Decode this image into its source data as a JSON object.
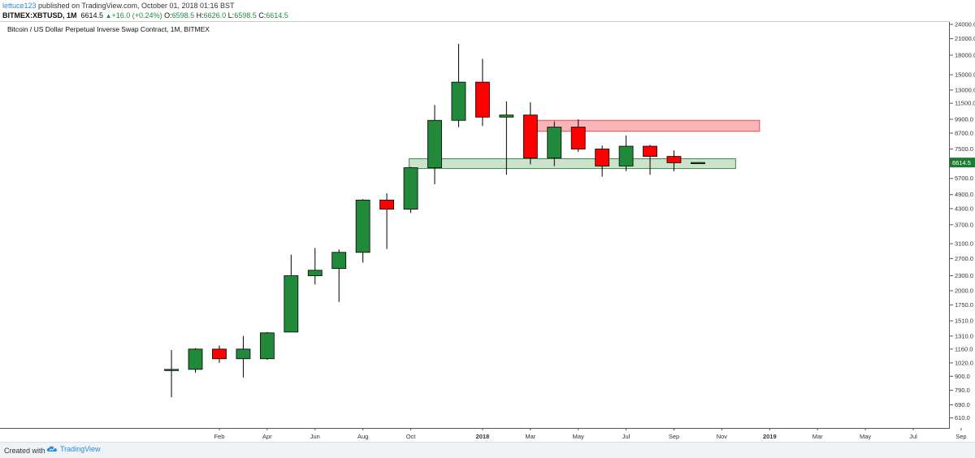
{
  "header": {
    "author": "lettuce123",
    "published_text": " published on TradingView.com, October 01, 2018 01:16 BST",
    "symbol": "BITMEX:XBTUSD, 1M",
    "last": "6614.5",
    "change": "+16.0 (+0.24%)",
    "open_label": "O:",
    "open": "6598.5",
    "high_label": "H:",
    "high": "6626.0",
    "low_label": "L:",
    "low": "6598.5",
    "close_label": "C:",
    "close": "6614.5"
  },
  "chart_title": "Bitcoin / US Dollar Perpetual Inverse Swap Contract, 1M, BITMEX",
  "footer": {
    "created_with": "Created with",
    "brand": "TradingView"
  },
  "colors": {
    "up": "#208a3a",
    "down": "#ff0000",
    "resistance_fill": "#f7a8ab",
    "resistance_stroke": "#e74b52",
    "support_fill": "#b9d8b9",
    "support_stroke": "#3d8b4a",
    "price_label": "#1e7b34"
  },
  "chart_data": {
    "type": "candlestick",
    "scale": "log",
    "interval": "1M",
    "ylim": [
      560,
      24000
    ],
    "y_ticks": [
      24000,
      21000,
      18000,
      15000,
      13000,
      11500,
      9900,
      8700,
      7500,
      6500,
      5700,
      4900,
      4300,
      3700,
      3100,
      2700,
      2300,
      2000,
      1750,
      1510,
      1310,
      1160,
      1020,
      900,
      790,
      690,
      610
    ],
    "x_ticks": [
      {
        "date": "2017-02",
        "label": "Feb"
      },
      {
        "date": "2017-04",
        "label": "Apr"
      },
      {
        "date": "2017-06",
        "label": "Jun"
      },
      {
        "date": "2017-08",
        "label": "Aug"
      },
      {
        "date": "2017-10",
        "label": "Oct"
      },
      {
        "date": "2018-01",
        "label": "2018",
        "bold": true
      },
      {
        "date": "2018-03",
        "label": "Mar"
      },
      {
        "date": "2018-05",
        "label": "May"
      },
      {
        "date": "2018-07",
        "label": "Jul"
      },
      {
        "date": "2018-09",
        "label": "Sep"
      },
      {
        "date": "2018-11",
        "label": "Nov"
      },
      {
        "date": "2019-01",
        "label": "2019",
        "bold": true
      },
      {
        "date": "2019-03",
        "label": "Mar"
      },
      {
        "date": "2019-05",
        "label": "May"
      },
      {
        "date": "2019-07",
        "label": "Jul"
      },
      {
        "date": "2019-09",
        "label": "Sep"
      }
    ],
    "candles": [
      {
        "date": "2016-12",
        "open": 960,
        "high": 1150,
        "low": 740,
        "close": 960
      },
      {
        "date": "2017-01",
        "open": 960,
        "high": 1170,
        "low": 930,
        "close": 1160
      },
      {
        "date": "2017-02",
        "open": 1160,
        "high": 1200,
        "low": 1020,
        "close": 1060
      },
      {
        "date": "2017-03",
        "open": 1060,
        "high": 1310,
        "low": 890,
        "close": 1160
      },
      {
        "date": "2017-04",
        "open": 1060,
        "high": 1360,
        "low": 1050,
        "close": 1350
      },
      {
        "date": "2017-05",
        "open": 1360,
        "high": 2800,
        "low": 1360,
        "close": 2300
      },
      {
        "date": "2017-06",
        "open": 2300,
        "high": 2980,
        "low": 2120,
        "close": 2420
      },
      {
        "date": "2017-07",
        "open": 2460,
        "high": 2940,
        "low": 1800,
        "close": 2860
      },
      {
        "date": "2017-08",
        "open": 2860,
        "high": 4700,
        "low": 2600,
        "close": 4660
      },
      {
        "date": "2017-09",
        "open": 4660,
        "high": 4960,
        "low": 2950,
        "close": 4280
      },
      {
        "date": "2017-10",
        "open": 4280,
        "high": 6350,
        "low": 4130,
        "close": 6300
      },
      {
        "date": "2017-11",
        "open": 6300,
        "high": 11300,
        "low": 5400,
        "close": 9800
      },
      {
        "date": "2017-12",
        "open": 9800,
        "high": 20000,
        "low": 9200,
        "close": 14000
      },
      {
        "date": "2018-01",
        "open": 14000,
        "high": 17400,
        "low": 9300,
        "close": 10100
      },
      {
        "date": "2018-02",
        "open": 10100,
        "high": 11700,
        "low": 5900,
        "close": 10300
      },
      {
        "date": "2018-03",
        "open": 10300,
        "high": 11600,
        "low": 6500,
        "close": 6900
      },
      {
        "date": "2018-04",
        "open": 6900,
        "high": 9700,
        "low": 6400,
        "close": 9200
      },
      {
        "date": "2018-05",
        "open": 9200,
        "high": 9900,
        "low": 7300,
        "close": 7500
      },
      {
        "date": "2018-06",
        "open": 7500,
        "high": 7750,
        "low": 5800,
        "close": 6400
      },
      {
        "date": "2018-07",
        "open": 6400,
        "high": 8500,
        "low": 6100,
        "close": 7700
      },
      {
        "date": "2018-08",
        "open": 7700,
        "high": 7800,
        "low": 5900,
        "close": 7000
      },
      {
        "date": "2018-09",
        "open": 7000,
        "high": 7400,
        "low": 6100,
        "close": 6600
      },
      {
        "date": "2018-10",
        "open": 6598.5,
        "high": 6626,
        "low": 6598.5,
        "close": 6614.5
      }
    ],
    "zones": [
      {
        "name": "resistance",
        "from": "2018-03",
        "to": "2018-12",
        "low": 8850,
        "high": 9800
      },
      {
        "name": "support",
        "from": "2017-10",
        "to": "2018-11",
        "low": 6250,
        "high": 6850
      }
    ],
    "last_price": 6614.5,
    "last_price_label": "6614.5"
  }
}
